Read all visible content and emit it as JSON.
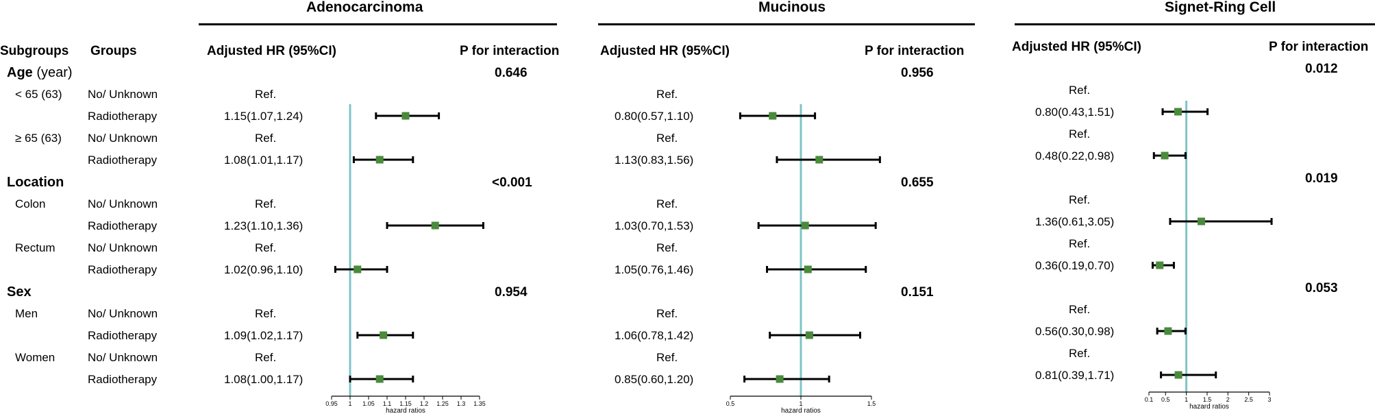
{
  "panels": [
    {
      "title": "Adenocarcinoma",
      "col_hr": "Adjusted HR (95%CI)",
      "col_p": "P for interaction"
    },
    {
      "title": "Mucinous",
      "col_hr": "Adjusted HR (95%CI)",
      "col_p": "P for interaction"
    },
    {
      "title": "Signet-Ring Cell",
      "col_hr": "Adjusted HR (95%CI)",
      "col_p": "P for interaction"
    }
  ],
  "left": {
    "col_subgroups": "Subgroups",
    "col_groups": "Groups",
    "sections": [
      {
        "name": "Age",
        "unit": " (year)"
      },
      {
        "name": "Location"
      },
      {
        "name": "Sex"
      }
    ],
    "subgroups": [
      "< 65 (63)",
      "≥ 65 (63)",
      "Colon",
      "Rectum",
      "Men",
      "Women"
    ],
    "group_ref": "No/ Unknown",
    "group_rt": "Radiotherapy"
  },
  "ref_label": "Ref.",
  "chart_data": [
    {
      "type": "forest",
      "title": "Adenocarcinoma",
      "xlabel": "hazard ratios",
      "ref_line": 1,
      "xlim": [
        0.95,
        1.35
      ],
      "ticks": [
        "0.95",
        "1",
        "1.05",
        "1.1",
        "1.15",
        "1.2",
        "1.25",
        "1.3",
        "1.35"
      ],
      "p_values": [
        "0.646",
        "<0.001",
        "0.954"
      ],
      "rows": [
        {
          "subgroup": "< 65 (63)",
          "label": "1.15(1.07,1.24)",
          "hr": 1.15,
          "lo": 1.07,
          "hi": 1.24
        },
        {
          "subgroup": "≥ 65 (63)",
          "label": "1.08(1.01,1.17)",
          "hr": 1.08,
          "lo": 1.01,
          "hi": 1.17
        },
        {
          "subgroup": "Colon",
          "label": "1.23(1.10,1.36)",
          "hr": 1.23,
          "lo": 1.1,
          "hi": 1.36
        },
        {
          "subgroup": "Rectum",
          "label": "1.02(0.96,1.10)",
          "hr": 1.02,
          "lo": 0.96,
          "hi": 1.1
        },
        {
          "subgroup": "Men",
          "label": "1.09(1.02,1.17)",
          "hr": 1.09,
          "lo": 1.02,
          "hi": 1.17
        },
        {
          "subgroup": "Women",
          "label": "1.08(1.00,1.17)",
          "hr": 1.08,
          "lo": 1.0,
          "hi": 1.17
        }
      ]
    },
    {
      "type": "forest",
      "title": "Mucinous",
      "xlabel": "hazard ratios",
      "ref_line": 1,
      "xlim": [
        0.5,
        1.5
      ],
      "ticks": [
        "0.5",
        "1",
        "1.5"
      ],
      "p_values": [
        "0.956",
        "0.655",
        "0.151"
      ],
      "rows": [
        {
          "subgroup": "< 65 (63)",
          "label": "0.80(0.57,1.10)",
          "hr": 0.8,
          "lo": 0.57,
          "hi": 1.1
        },
        {
          "subgroup": "≥ 65 (63)",
          "label": "1.13(0.83,1.56)",
          "hr": 1.13,
          "lo": 0.83,
          "hi": 1.56
        },
        {
          "subgroup": "Colon",
          "label": "1.03(0.70,1.53)",
          "hr": 1.03,
          "lo": 0.7,
          "hi": 1.53
        },
        {
          "subgroup": "Rectum",
          "label": "1.05(0.76,1.46)",
          "hr": 1.05,
          "lo": 0.76,
          "hi": 1.46
        },
        {
          "subgroup": "Men",
          "label": "1.06(0.78,1.42)",
          "hr": 1.06,
          "lo": 0.78,
          "hi": 1.42
        },
        {
          "subgroup": "Women",
          "label": "0.85(0.60,1.20)",
          "hr": 0.85,
          "lo": 0.6,
          "hi": 1.2
        }
      ]
    },
    {
      "type": "forest",
      "title": "Signet-Ring Cell",
      "xlabel": "hazard ratios",
      "ref_line": 1,
      "xlim": [
        0.1,
        3
      ],
      "ticks": [
        "0.1",
        "0.5",
        "1",
        "1.5",
        "2",
        "2.5",
        "3"
      ],
      "p_values": [
        "0.012",
        "0.019",
        "0.053"
      ],
      "rows": [
        {
          "subgroup": "< 65 (63)",
          "label": "0.80(0.43,1.51)",
          "hr": 0.8,
          "lo": 0.43,
          "hi": 1.51
        },
        {
          "subgroup": "≥ 65 (63)",
          "label": "0.48(0.22,0.98)",
          "hr": 0.48,
          "lo": 0.22,
          "hi": 0.98
        },
        {
          "subgroup": "Colon",
          "label": "1.36(0.61,3.05)",
          "hr": 1.36,
          "lo": 0.61,
          "hi": 3.05
        },
        {
          "subgroup": "Rectum",
          "label": "0.36(0.19,0.70)",
          "hr": 0.36,
          "lo": 0.19,
          "hi": 0.7
        },
        {
          "subgroup": "Men",
          "label": "0.56(0.30,0.98)",
          "hr": 0.56,
          "lo": 0.3,
          "hi": 0.98
        },
        {
          "subgroup": "Women",
          "label": "0.81(0.39,1.71)",
          "hr": 0.81,
          "lo": 0.39,
          "hi": 1.71
        }
      ]
    }
  ],
  "colors": {
    "marker": "#4a8a3c",
    "ref_line": "#7fc4c6",
    "whisker": "#000000"
  }
}
